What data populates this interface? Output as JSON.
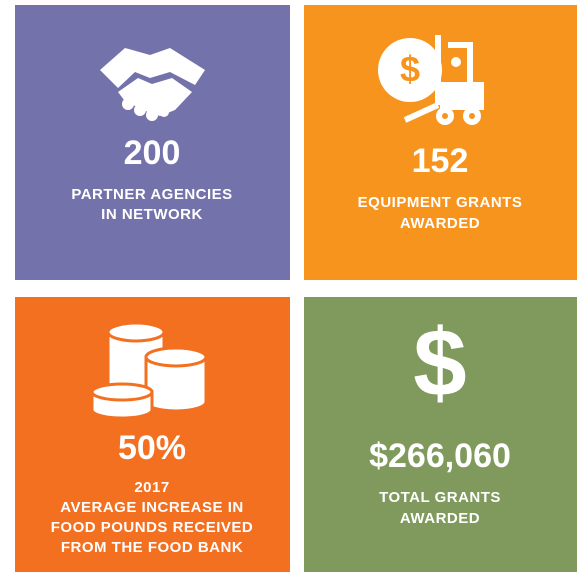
{
  "tiles": [
    {
      "stat": "200",
      "lines": [
        "PARTNER AGENCIES",
        "IN NETWORK"
      ]
    },
    {
      "stat": "152",
      "lines": [
        "EQUIPMENT GRANTS",
        "AWARDED"
      ]
    },
    {
      "stat": "50%",
      "lines": [
        "2017",
        "AVERAGE INCREASE IN",
        "FOOD POUNDS RECEIVED",
        "FROM THE FOOD BANK"
      ]
    },
    {
      "stat": "$266,060",
      "lines": [
        "TOTAL GRANTS",
        "AWARDED"
      ]
    }
  ]
}
